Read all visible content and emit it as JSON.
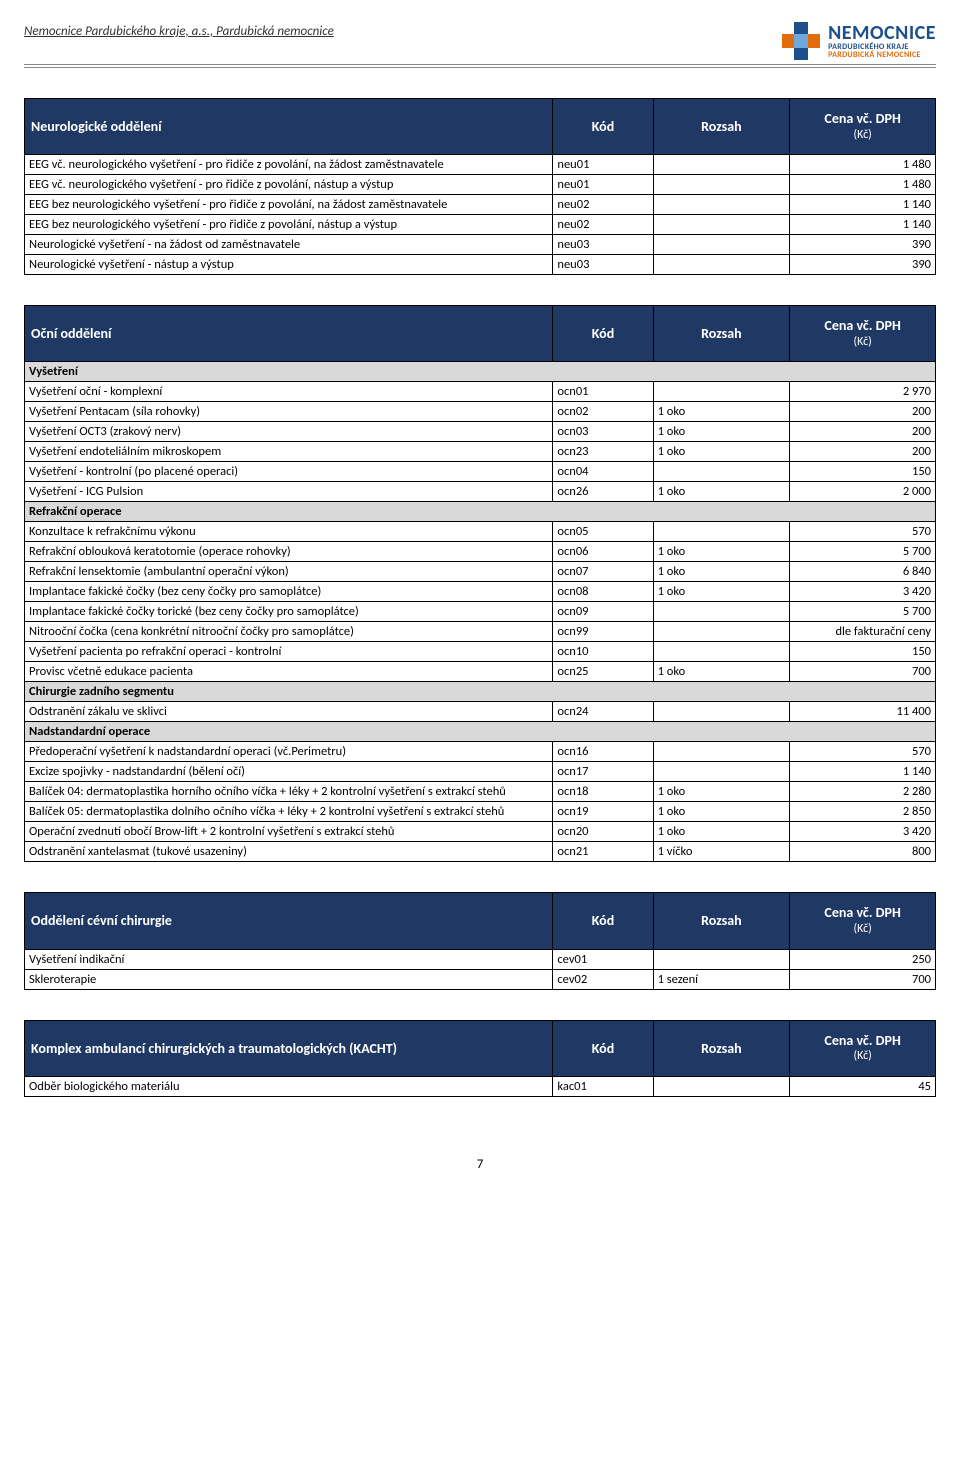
{
  "header": {
    "org": "Nemocnice Pardubického kraje, a.s., Pardubická nemocnice",
    "logo": {
      "main": "NEMOCNICE",
      "sub1": "PARDUBICKÉHO KRAJE",
      "sub2": "PARDUBICKÁ NEMOCNICE"
    }
  },
  "columns": {
    "name": "",
    "code": "Kód",
    "range": "Rozsah",
    "price_line1": "Cena vč. DPH",
    "price_line2": "(Kč)"
  },
  "colors": {
    "header_bg": "#1f3864",
    "header_fg": "#ffffff",
    "subheader_bg": "#d9d9d9",
    "border": "#000000",
    "logo_blue": "#1d4f8b",
    "logo_orange": "#e26b0a"
  },
  "sections": [
    {
      "title": "Neurologické oddělení",
      "rows": [
        {
          "type": "data",
          "name": "EEG vč. neurologického vyšetření - pro řidiče z povolání, na žádost zaměstnavatele",
          "code": "neu01",
          "range": "",
          "price": "1 480"
        },
        {
          "type": "data",
          "name": "EEG vč. neurologického vyšetření - pro řidiče z povolání, nástup a výstup",
          "code": "neu01",
          "range": "",
          "price": "1 480"
        },
        {
          "type": "data",
          "name": "EEG bez neurologického vyšetření - pro řidiče z povolání, na žádost zaměstnavatele",
          "code": "neu02",
          "range": "",
          "price": "1 140"
        },
        {
          "type": "data",
          "name": "EEG bez neurologického vyšetření - pro řidiče z povolání, nástup a výstup",
          "code": "neu02",
          "range": "",
          "price": "1 140"
        },
        {
          "type": "data",
          "name": "Neurologické vyšetření - na žádost od zaměstnavatele",
          "code": "neu03",
          "range": "",
          "price": "390"
        },
        {
          "type": "data",
          "name": "Neurologické vyšetření - nástup a výstup",
          "code": "neu03",
          "range": "",
          "price": "390"
        }
      ]
    },
    {
      "title": "Oční oddělení",
      "rows": [
        {
          "type": "sub",
          "name": "Vyšetření"
        },
        {
          "type": "data",
          "name": "Vyšetření oční - komplexní",
          "code": "ocn01",
          "range": "",
          "price": "2 970"
        },
        {
          "type": "data",
          "name": "Vyšetření Pentacam (síla rohovky)",
          "code": "ocn02",
          "range": "1 oko",
          "price": "200"
        },
        {
          "type": "data",
          "name": "Vyšetření OCT3 (zrakový nerv)",
          "code": "ocn03",
          "range": "1 oko",
          "price": "200"
        },
        {
          "type": "data",
          "name": "Vyšetření endoteliálním mikroskopem",
          "code": "ocn23",
          "range": "1 oko",
          "price": "200"
        },
        {
          "type": "data",
          "name": "Vyšetření - kontrolní (po placené operaci)",
          "code": "ocn04",
          "range": "",
          "price": "150"
        },
        {
          "type": "data",
          "name": "Vyšetření - ICG Pulsion",
          "code": "ocn26",
          "range": "1 oko",
          "price": "2 000"
        },
        {
          "type": "sub",
          "name": "Refrakční operace"
        },
        {
          "type": "data",
          "name": "Konzultace k refrakčnímu výkonu",
          "code": "ocn05",
          "range": "",
          "price": "570"
        },
        {
          "type": "data",
          "name": "Refrakční oblouková keratotomie (operace rohovky)",
          "code": "ocn06",
          "range": "1 oko",
          "price": "5 700"
        },
        {
          "type": "data",
          "name": "Refrakční lensektomie (ambulantní operační výkon)",
          "code": "ocn07",
          "range": "1 oko",
          "price": "6 840"
        },
        {
          "type": "data",
          "name": "Implantace fakické čočky (bez ceny čočky pro samoplátce)",
          "code": "ocn08",
          "range": "1 oko",
          "price": "3 420"
        },
        {
          "type": "data",
          "name": "Implantace fakické čočky torické (bez ceny čočky pro samoplátce)",
          "code": "ocn09",
          "range": "",
          "price": "5 700"
        },
        {
          "type": "data",
          "name": "Nitrooční čočka (cena konkrétní nitrooční čočky pro samoplátce)",
          "code": "ocn99",
          "range": "",
          "price": "dle fakturační ceny"
        },
        {
          "type": "data",
          "name": "Vyšetření pacienta po refrakční operaci - kontrolní",
          "code": "ocn10",
          "range": "",
          "price": "150"
        },
        {
          "type": "data",
          "name": "Provisc včetně edukace pacienta",
          "code": "ocn25",
          "range": "1 oko",
          "price": "700"
        },
        {
          "type": "sub",
          "name": "Chirurgie zadního segmentu"
        },
        {
          "type": "data",
          "name": "Odstranění zákalu ve sklivci",
          "code": "ocn24",
          "range": "",
          "price": "11 400"
        },
        {
          "type": "sub",
          "name": "Nadstandardní operace"
        },
        {
          "type": "data",
          "name": "Předoperační vyšetření k nadstandardní operaci (vč.Perimetru)",
          "code": "ocn16",
          "range": "",
          "price": "570"
        },
        {
          "type": "data",
          "name": "Excize spojivky - nadstandardní (bělení očí)",
          "code": "ocn17",
          "range": "",
          "price": "1 140"
        },
        {
          "type": "data",
          "name": "Balíček 04: dermatoplastika horního očního víčka + léky + 2 kontrolní vyšetření s extrakcí stehů",
          "code": "ocn18",
          "range": "1 oko",
          "price": "2 280"
        },
        {
          "type": "data",
          "name": "Balíček 05: dermatoplastika dolního očního víčka + léky + 2 kontrolní vyšetření s extrakcí stehů",
          "code": "ocn19",
          "range": "1 oko",
          "price": "2 850"
        },
        {
          "type": "data",
          "name": "Operační zvednutí obočí Brow-lift + 2 kontrolní vyšetření s extrakcí stehů",
          "code": "ocn20",
          "range": "1 oko",
          "price": "3 420"
        },
        {
          "type": "data",
          "name": "Odstranění xantelasmat (tukové usazeniny)",
          "code": "ocn21",
          "range": "1 víčko",
          "price": "800"
        }
      ]
    },
    {
      "title": "Oddělení cévní chirurgie",
      "rows": [
        {
          "type": "data",
          "name": "Vyšetření indikační",
          "code": "cev01",
          "range": "",
          "price": "250"
        },
        {
          "type": "data",
          "name": "Skleroterapie",
          "code": "cev02",
          "range": "1 sezení",
          "price": "700"
        }
      ]
    },
    {
      "title": "Komplex ambulancí chirurgických a traumatologických (KACHT)",
      "rows": [
        {
          "type": "data",
          "name": "Odběr biologického materiálu",
          "code": "kac01",
          "range": "",
          "price": "45"
        }
      ]
    }
  ],
  "page_number": "7"
}
